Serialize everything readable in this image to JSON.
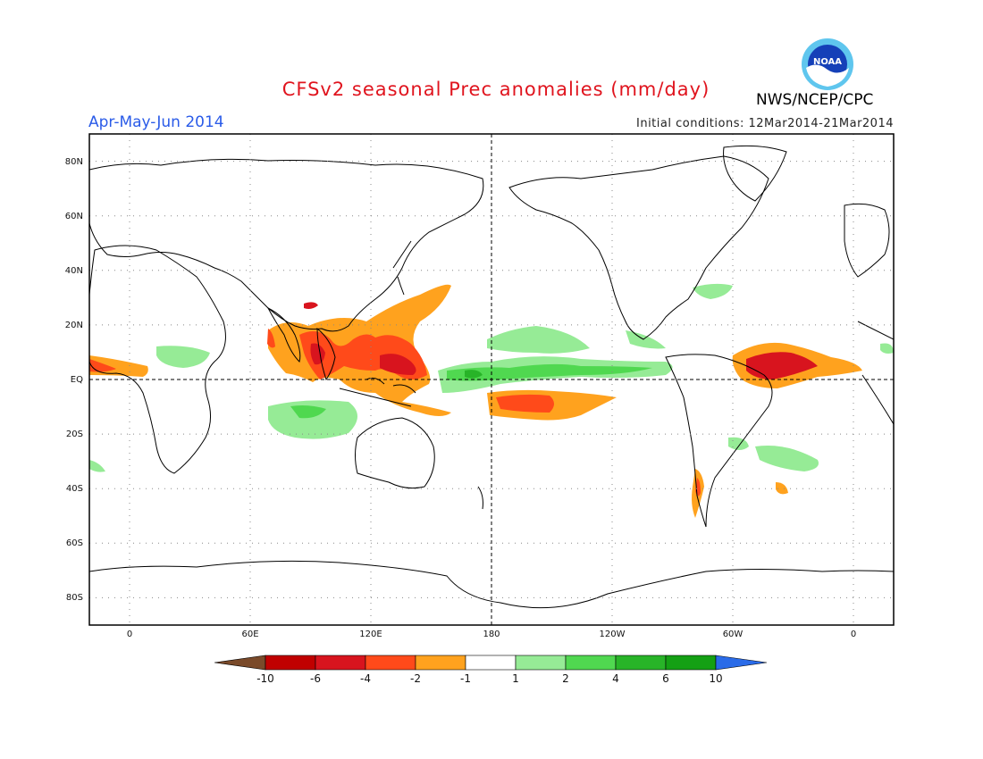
{
  "header": {
    "title": "CFSv2 seasonal Prec anomalies (mm/day)",
    "season": "Apr-May-Jun 2014",
    "initial_conditions": "Initial conditions: 12Mar2014-21Mar2014",
    "agency": "NWS/NCEP/CPC",
    "logo_text": "NOAA"
  },
  "map": {
    "projection": "equirectangular",
    "lon_range": [
      -20,
      380
    ],
    "lat_range": [
      -90,
      90
    ],
    "lat_ticks": [
      {
        "value": 80,
        "label": "80N"
      },
      {
        "value": 60,
        "label": "60N"
      },
      {
        "value": 40,
        "label": "40N"
      },
      {
        "value": 20,
        "label": "20N"
      },
      {
        "value": 0,
        "label": "EQ"
      },
      {
        "value": -20,
        "label": "20S"
      },
      {
        "value": -40,
        "label": "40S"
      },
      {
        "value": -60,
        "label": "60S"
      },
      {
        "value": -80,
        "label": "80S"
      }
    ],
    "lon_ticks": [
      {
        "value": 0,
        "label": "0"
      },
      {
        "value": 60,
        "label": "60E"
      },
      {
        "value": 120,
        "label": "120E"
      },
      {
        "value": 180,
        "label": "180"
      },
      {
        "value": 240,
        "label": "120W"
      },
      {
        "value": 300,
        "label": "60W"
      },
      {
        "value": 360,
        "label": "0"
      }
    ],
    "grid": "dotted",
    "reference_lines": [
      "equator",
      "dateline"
    ]
  },
  "colorbar": {
    "labels": [
      "-10",
      "-6",
      "-4",
      "-2",
      "-1",
      "1",
      "2",
      "4",
      "6",
      "10"
    ],
    "colors": [
      "#7a4a2a",
      "#c00000",
      "#d8141e",
      "#ff4a1a",
      "#ffa21e",
      "#ffffff",
      "#96eb96",
      "#50d850",
      "#28b428",
      "#14a014",
      "#2a6be8"
    ]
  },
  "colors": {
    "dry_light": "#ffa21e",
    "dry_medium": "#ff4a1a",
    "dry_strong": "#d8141e",
    "wet_light": "#96eb96",
    "wet_medium": "#50d850",
    "wet_strong": "#28b428",
    "title": "#e0141e",
    "season": "#2a5be8"
  }
}
